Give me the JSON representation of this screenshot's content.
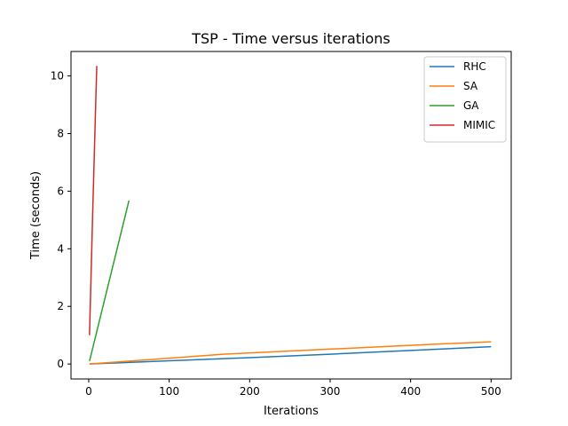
{
  "chart_data": {
    "type": "line",
    "title": "TSP - Time versus iterations",
    "xlabel": "Iterations",
    "ylabel": "Time (seconds)",
    "xlim": [
      -22,
      525
    ],
    "ylim": [
      -0.52,
      10.85
    ],
    "xticks": [
      0,
      100,
      200,
      300,
      400,
      500
    ],
    "yticks": [
      0,
      2,
      4,
      6,
      8,
      10
    ],
    "grid": false,
    "legend_position": "top-right",
    "series": [
      {
        "name": "RHC",
        "color": "#1f77b4",
        "x": [
          1,
          100,
          200,
          300,
          400,
          500
        ],
        "y": [
          0.0,
          0.11,
          0.22,
          0.34,
          0.47,
          0.6
        ]
      },
      {
        "name": "SA",
        "color": "#ff7f0e",
        "x": [
          1,
          50,
          100,
          167,
          250,
          333,
          417,
          500
        ],
        "y": [
          0.0,
          0.1,
          0.2,
          0.34,
          0.45,
          0.56,
          0.67,
          0.77
        ]
      },
      {
        "name": "GA",
        "color": "#2ca02c",
        "x": [
          1,
          50
        ],
        "y": [
          0.1,
          5.67
        ]
      },
      {
        "name": "MIMIC",
        "color": "#d62728",
        "x": [
          1,
          5,
          10
        ],
        "y": [
          1.0,
          5.3,
          10.35
        ]
      }
    ]
  }
}
